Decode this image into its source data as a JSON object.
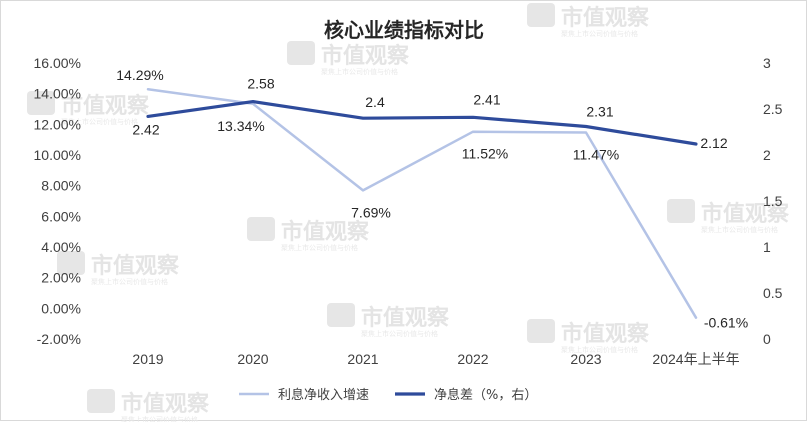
{
  "chart_data": {
    "type": "line",
    "title": "核心业绩指标对比",
    "categories": [
      "2019",
      "2020",
      "2021",
      "2022",
      "2023",
      "2024年上半年"
    ],
    "series": [
      {
        "name": "利息净收入增速",
        "axis": "left",
        "color": "#b4c3e6",
        "values": [
          14.29,
          13.34,
          7.69,
          11.52,
          11.47,
          -0.61
        ],
        "labels": [
          "14.29%",
          "13.34%",
          "7.69%",
          "11.52%",
          "11.47%",
          "-0.61%"
        ]
      },
      {
        "name": "净息差（%，右）",
        "axis": "right",
        "color": "#2e4b9b",
        "values": [
          2.42,
          2.58,
          2.4,
          2.41,
          2.31,
          2.12
        ],
        "labels": [
          "2.42",
          "2.58",
          "2.4",
          "2.41",
          "2.31",
          "2.12"
        ]
      }
    ],
    "y_left": {
      "lim": [
        -2,
        16
      ],
      "ticks": [
        16,
        14,
        12,
        10,
        8,
        6,
        4,
        2,
        0,
        -2
      ],
      "tick_labels": [
        "16.00%",
        "14.00%",
        "12.00%",
        "10.00%",
        "8.00%",
        "6.00%",
        "4.00%",
        "2.00%",
        "0.00%",
        "-2.00%"
      ]
    },
    "y_right": {
      "lim": [
        0,
        3
      ],
      "ticks": [
        3,
        2.5,
        2,
        1.5,
        1,
        0.5,
        0
      ],
      "tick_labels": [
        "3",
        "2.5",
        "2",
        "1.5",
        "1",
        "0.5",
        "0"
      ]
    },
    "grid": false,
    "legend_position": "bottom"
  },
  "watermark": {
    "text": "市值观察",
    "subtext": "聚焦上市公司价值与价格"
  }
}
